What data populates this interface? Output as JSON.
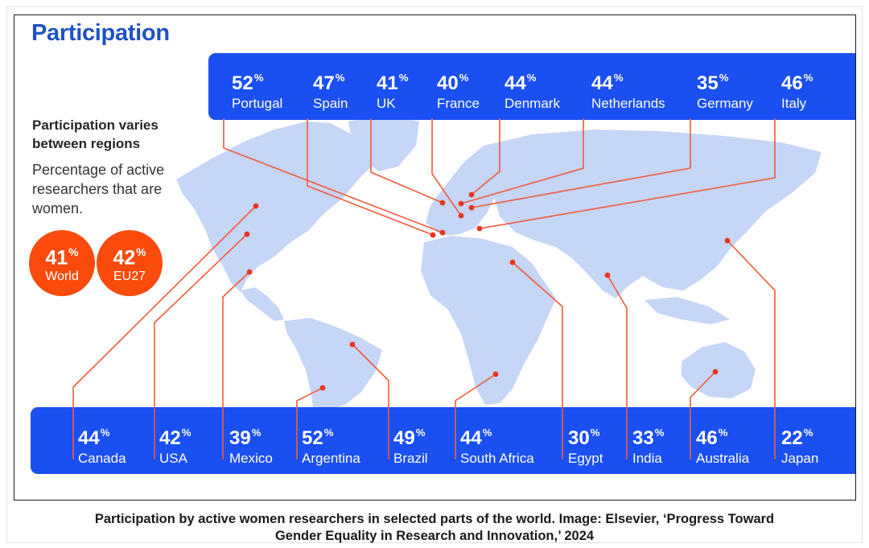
{
  "title": "Participation",
  "subtitle": "Participation varies between regions",
  "note": "Percentage of active researchers that are women.",
  "summary": [
    {
      "value": "41",
      "unit": "%",
      "label": "World"
    },
    {
      "value": "42",
      "unit": "%",
      "label": "EU27"
    }
  ],
  "top_regions": [
    {
      "value": "52",
      "unit": "%",
      "name": "Portugal"
    },
    {
      "value": "47",
      "unit": "%",
      "name": "Spain"
    },
    {
      "value": "41",
      "unit": "%",
      "name": "UK"
    },
    {
      "value": "40",
      "unit": "%",
      "name": "France"
    },
    {
      "value": "44",
      "unit": "%",
      "name": "Denmark"
    },
    {
      "value": "44",
      "unit": "%",
      "name": "Netherlands"
    },
    {
      "value": "35",
      "unit": "%",
      "name": "Germany"
    },
    {
      "value": "46",
      "unit": "%",
      "name": "Italy"
    }
  ],
  "bottom_regions": [
    {
      "value": "44",
      "unit": "%",
      "name": "Canada"
    },
    {
      "value": "42",
      "unit": "%",
      "name": "USA"
    },
    {
      "value": "39",
      "unit": "%",
      "name": "Mexico"
    },
    {
      "value": "52",
      "unit": "%",
      "name": "Argentina"
    },
    {
      "value": "49",
      "unit": "%",
      "name": "Brazil"
    },
    {
      "value": "44",
      "unit": "%",
      "name": "South Africa"
    },
    {
      "value": "30",
      "unit": "%",
      "name": "Egypt"
    },
    {
      "value": "33",
      "unit": "%",
      "name": "India"
    },
    {
      "value": "46",
      "unit": "%",
      "name": "Australia"
    },
    {
      "value": "22",
      "unit": "%",
      "name": "Japan"
    }
  ],
  "caption_line1": "Participation by active women researchers in selected parts of the world. Image: Elsevier, ‘Progress Toward",
  "caption_line2": "Gender Equality in Research and Innovation,’ 2024",
  "colors": {
    "band": "#1a4ff2",
    "accent": "#fb4b0c",
    "title": "#1d52c4",
    "map_land": "#c6d6f6"
  }
}
